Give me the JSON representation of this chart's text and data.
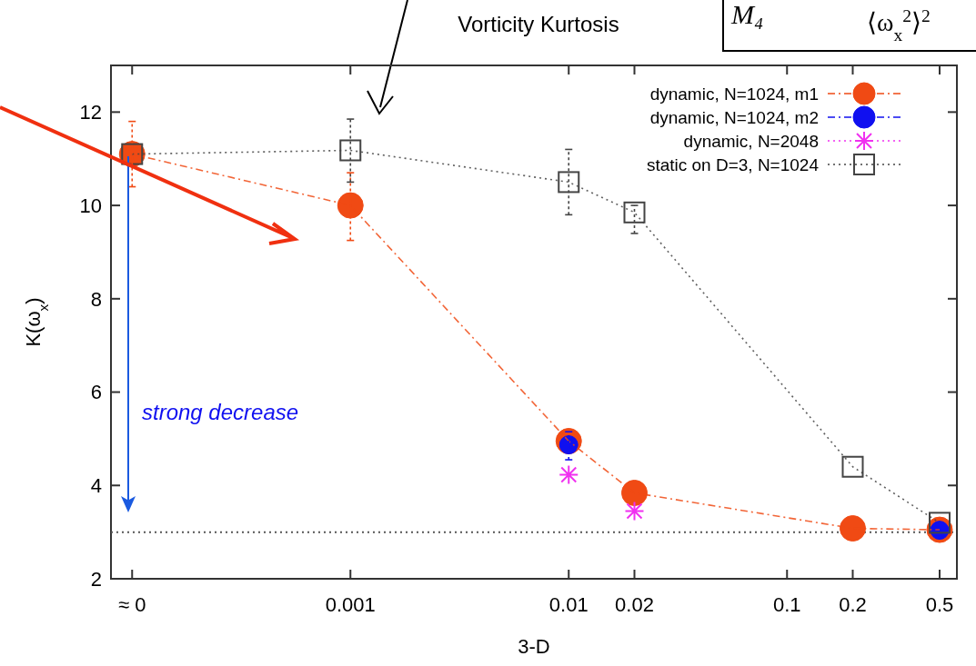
{
  "chart_data": {
    "type": "line",
    "xlabel": "3-D",
    "ylabel": "K(ω$_{x}$)",
    "log": "x",
    "xlim": [
      8e-05,
      0.6
    ],
    "xticks": [
      {
        "value": 0.0001,
        "label": "≈ 0"
      },
      0.001,
      0.01,
      0.02,
      0.1,
      0.2,
      0.5
    ],
    "ylim": [
      2,
      13
    ],
    "yticks": [
      2,
      4,
      6,
      8,
      10,
      12
    ],
    "grid": false,
    "legend": "top right",
    "series": [
      {
        "name": "dynamic, N=1024, m1",
        "color": "#f04a14",
        "marker": "circle",
        "line_style": "dashed",
        "x": [
          0.0001,
          0.001,
          0.01,
          0.02,
          0.2,
          0.5
        ],
        "values": [
          11.1,
          10.0,
          4.95,
          3.84,
          3.08,
          3.05
        ],
        "errors": [
          [
            10.4,
            11.8
          ],
          [
            9.25,
            10.7
          ],
          null,
          null,
          null,
          null
        ]
      },
      {
        "name": "dynamic, N=1024, m2",
        "type": "scatter",
        "color": "#1010f0",
        "marker": "circle",
        "line_style": "dashed",
        "x": [
          0.01,
          0.5
        ],
        "values": [
          4.87,
          3.04
        ],
        "errors": [
          [
            4.55,
            5.15
          ],
          null
        ]
      },
      {
        "name": "dynamic, N=2048",
        "type": "scatter",
        "color": "#f030f0",
        "marker": "cross",
        "line_style": "dotted",
        "x": [
          0.01,
          0.02
        ],
        "values": [
          4.23,
          3.45
        ]
      },
      {
        "name": "static on D=3, N=1024",
        "color": "#444444",
        "marker": "square",
        "line_style": "dotted",
        "x": [
          0.0001,
          0.001,
          0.01,
          0.02,
          0.2,
          0.5
        ],
        "values": [
          11.1,
          11.18,
          10.5,
          9.85,
          4.4,
          3.2
        ],
        "errors": [
          null,
          [
            10.5,
            11.85
          ],
          [
            9.8,
            11.2
          ],
          [
            9.4,
            10.0
          ],
          null,
          null
        ]
      }
    ],
    "ref_lines": [
      {
        "axis": "y",
        "value": 3,
        "color": "#555555",
        "line_style": "dotted"
      }
    ],
    "annotations": [
      "Vorticity Kurtosis",
      "strong decrease",
      "M₄",
      "⟨ω$_{x}$$^{2}$⟩$^{2}$"
    ]
  }
}
